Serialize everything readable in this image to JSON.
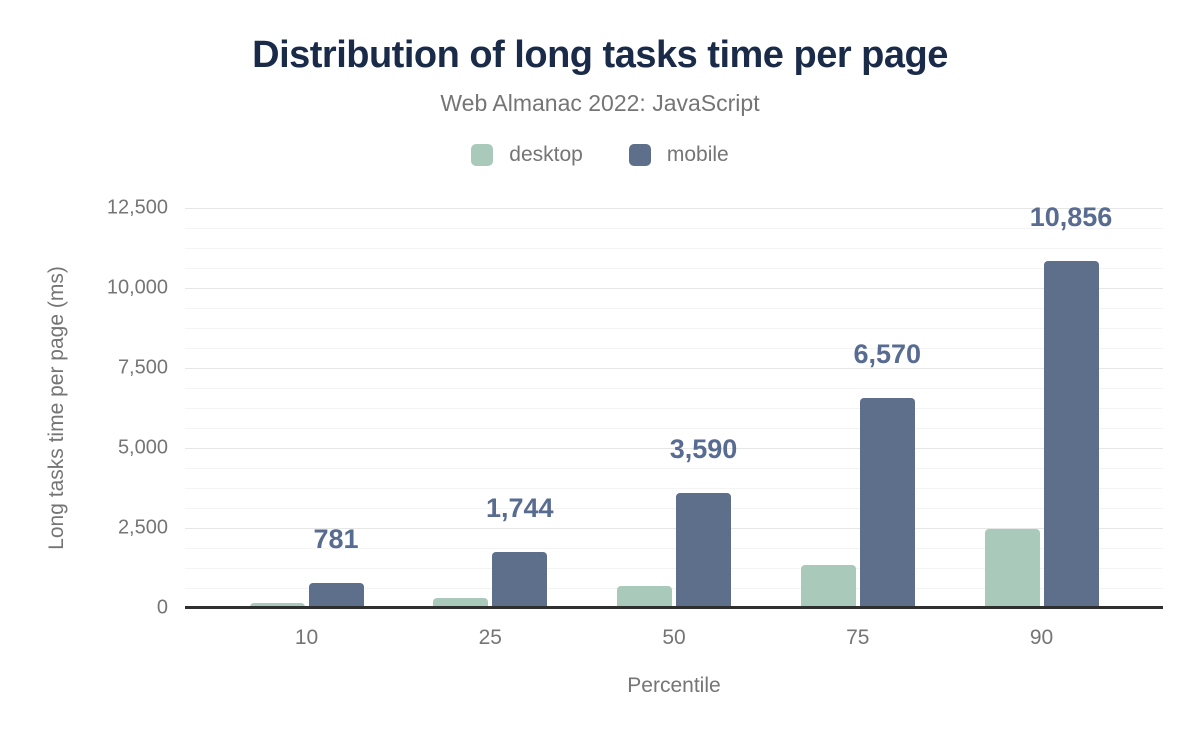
{
  "chart_data": {
    "type": "bar",
    "title": "Distribution of long tasks time per page",
    "subtitle": "Web Almanac 2022: JavaScript",
    "xlabel": "Percentile",
    "ylabel": "Long tasks time per page (ms)",
    "categories": [
      "10",
      "25",
      "50",
      "75",
      "90"
    ],
    "series": [
      {
        "name": "desktop",
        "color": "#a9cabb",
        "values": [
          150,
          310,
          700,
          1350,
          2480
        ],
        "value_labels": null
      },
      {
        "name": "mobile",
        "color": "#5d6f8b",
        "values": [
          781,
          1744,
          3590,
          6570,
          10856
        ],
        "value_labels": [
          "781",
          "1,744",
          "3,590",
          "6,570",
          "10,856"
        ]
      }
    ],
    "ylim": [
      0,
      12500
    ],
    "yticks": [
      {
        "value": 0,
        "label": "0"
      },
      {
        "value": 2500,
        "label": "2,500"
      },
      {
        "value": 5000,
        "label": "5,000"
      },
      {
        "value": 7500,
        "label": "7,500"
      },
      {
        "value": 10000,
        "label": "10,000"
      },
      {
        "value": 12500,
        "label": "12,500"
      }
    ],
    "grid": {
      "minor_step": 625,
      "major_step": 2500,
      "minor_color": "#f4f4f4",
      "major_color": "#e6e6e6"
    },
    "legend_position": "top",
    "colors": {
      "title": "#1a2b49",
      "text": "#757575",
      "value_label": "#586b90",
      "axis_line": "#2f2f2f",
      "background": "#ffffff"
    }
  }
}
